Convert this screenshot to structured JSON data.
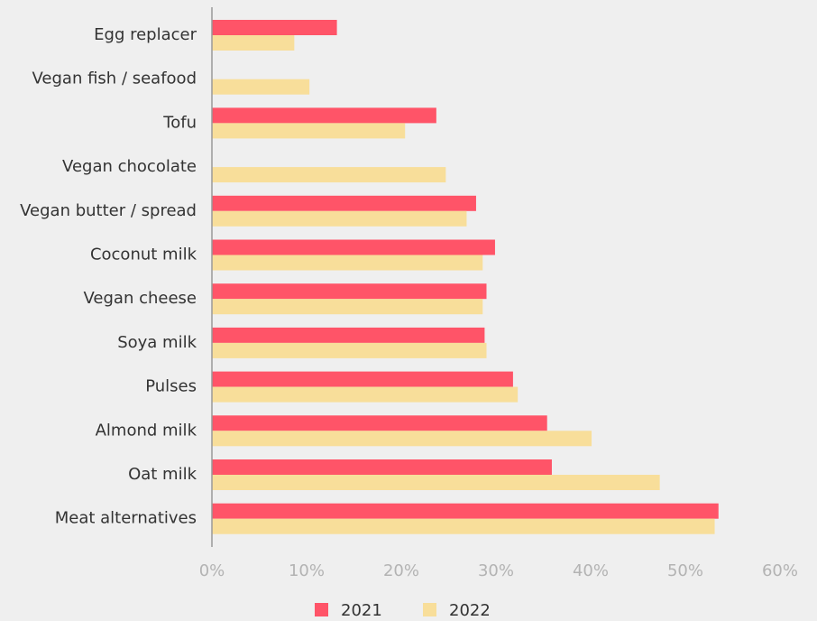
{
  "chart_data": {
    "type": "bar",
    "orientation": "horizontal",
    "categories": [
      "Egg replacer",
      "Vegan fish / seafood",
      "Tofu",
      "Vegan chocolate",
      "Vegan butter / spread",
      "Coconut milk",
      "Vegan cheese",
      "Soya milk",
      "Pulses",
      "Almond milk",
      "Oat milk",
      "Meat alternatives"
    ],
    "series": [
      {
        "name": "2021",
        "color": "#ff5468",
        "values": [
          13.2,
          null,
          23.7,
          null,
          27.9,
          29.9,
          29.0,
          28.8,
          31.8,
          35.4,
          35.9,
          53.5
        ]
      },
      {
        "name": "2022",
        "color": "#f8de9a",
        "values": [
          8.7,
          10.3,
          20.4,
          24.7,
          26.9,
          28.6,
          28.6,
          29.0,
          32.3,
          40.1,
          47.3,
          53.1
        ]
      }
    ],
    "xlim": [
      0,
      60
    ],
    "x_ticks": [
      "0%",
      "10%",
      "20%",
      "30%",
      "40%",
      "50%",
      "60%"
    ],
    "x_tick_values": [
      0,
      10,
      20,
      30,
      40,
      50,
      60
    ],
    "grid": false,
    "legend_position": "bottom-center",
    "title": "",
    "xlabel": "",
    "ylabel": ""
  }
}
